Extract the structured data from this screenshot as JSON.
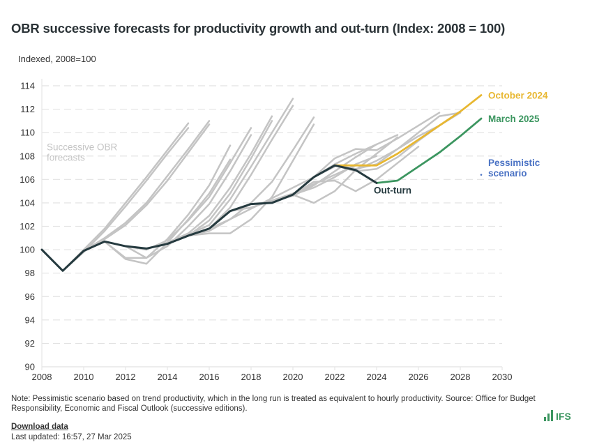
{
  "header": {
    "title": "OBR successive forecasts for productivity growth and out-turn (Index: 2008 = 100)",
    "subtitle": "Indexed, 2008=100"
  },
  "footer": {
    "note": "Note: Pessimistic scenario based on trend productivity, which in the long run is treated as equivalent to hourly productivity. Source: Office for Budget Responsibility, Economic and Fiscal Outlook (successive editions).",
    "download_label": "Download data",
    "last_updated": "Last updated: 16:57, 27 Mar 2025",
    "logo_text": "IFS",
    "logo_icon": "bar-chart-icon"
  },
  "colors": {
    "outturn": "#253a3f",
    "october_2024": "#e8b730",
    "march_2025": "#3c9660",
    "pessimistic": "#4a72c4",
    "forecasts": "#c4c4c4",
    "grid": "#e2e2e2"
  },
  "chart_data": {
    "type": "line",
    "title": "OBR successive forecasts for productivity growth and out-turn (Index: 2008 = 100)",
    "ylabel": "Indexed, 2008=100",
    "xlabel": "",
    "xlim": [
      2008,
      2030
    ],
    "ylim": [
      90,
      114
    ],
    "x_ticks": [
      "2008",
      "2010",
      "2012",
      "2014",
      "2016",
      "2018",
      "2020",
      "2022",
      "2024",
      "2026",
      "2028",
      "2030"
    ],
    "y_ticks": [
      "90",
      "92",
      "94",
      "96",
      "98",
      "100",
      "102",
      "104",
      "106",
      "108",
      "110",
      "112",
      "114"
    ],
    "grid": "horizontal-dashed",
    "annotations": [
      {
        "text": "Successive OBR forecasts",
        "lines": [
          "Successive OBR",
          "forecasts"
        ],
        "series": "forecasts"
      },
      {
        "text": "Out-turn",
        "series": "outturn"
      },
      {
        "text": "October 2024",
        "series": "october_2024"
      },
      {
        "text": "March 2025",
        "series": "march_2025"
      },
      {
        "text": "Pessimistic scenario",
        "lines": [
          "Pessimistic",
          "scenario"
        ],
        "series": "pessimistic"
      }
    ],
    "series": [
      {
        "name": "Out-turn",
        "key": "outturn",
        "x": [
          2008,
          2009,
          2010,
          2011,
          2012,
          2013,
          2014,
          2015,
          2016,
          2017,
          2018,
          2019,
          2020,
          2021,
          2022,
          2023,
          2024
        ],
        "values": [
          100,
          98.2,
          99.9,
          100.7,
          100.3,
          100.1,
          100.5,
          101.2,
          101.8,
          103.3,
          103.9,
          104.0,
          104.7,
          106.2,
          107.2,
          106.8,
          105.7
        ]
      },
      {
        "name": "October 2024",
        "key": "october_2024",
        "x": [
          2022,
          2023,
          2024,
          2025,
          2026,
          2027,
          2028,
          2029
        ],
        "values": [
          107.2,
          107.2,
          107.2,
          108.2,
          109.4,
          110.6,
          111.8,
          113.2
        ]
      },
      {
        "name": "March 2025",
        "key": "march_2025",
        "x": [
          2024,
          2025,
          2026,
          2027,
          2028,
          2029
        ],
        "values": [
          105.7,
          105.9,
          107.1,
          108.3,
          109.7,
          111.2
        ]
      },
      {
        "name": "Pessimistic scenario",
        "key": "pessimistic",
        "x": [
          2029
        ],
        "values": [
          106.4
        ]
      }
    ],
    "forecast_series": [
      {
        "x": [
          2009,
          2010,
          2011,
          2012,
          2013,
          2014,
          2015
        ],
        "values": [
          98.2,
          100.0,
          101.8,
          104.0,
          106.2,
          108.5,
          110.8
        ]
      },
      {
        "x": [
          2009,
          2010,
          2011,
          2012,
          2013,
          2014,
          2015
        ],
        "values": [
          98.2,
          99.8,
          101.6,
          103.7,
          105.9,
          108.2,
          110.4
        ]
      },
      {
        "x": [
          2010,
          2011,
          2012,
          2013,
          2014,
          2015,
          2016
        ],
        "values": [
          99.9,
          101.0,
          102.3,
          104.0,
          106.3,
          108.6,
          111.0
        ]
      },
      {
        "x": [
          2010,
          2011,
          2012,
          2013,
          2014,
          2015,
          2016
        ],
        "values": [
          99.9,
          100.9,
          102.1,
          103.8,
          105.9,
          108.3,
          110.7
        ]
      },
      {
        "x": [
          2011,
          2012,
          2013,
          2014,
          2015,
          2016,
          2017
        ],
        "values": [
          100.7,
          99.3,
          99.3,
          100.9,
          103.0,
          105.5,
          108.9
        ]
      },
      {
        "x": [
          2011,
          2012,
          2013,
          2014,
          2015,
          2016,
          2017
        ],
        "values": [
          100.7,
          99.2,
          98.8,
          100.6,
          102.6,
          104.8,
          107.7
        ]
      },
      {
        "x": [
          2012,
          2013,
          2014,
          2015,
          2016,
          2017,
          2018
        ],
        "values": [
          100.3,
          100.0,
          100.8,
          102.5,
          104.5,
          107.4,
          110.4
        ]
      },
      {
        "x": [
          2012,
          2013,
          2014,
          2015,
          2016,
          2017,
          2018
        ],
        "values": [
          100.3,
          99.3,
          100.3,
          102.0,
          103.9,
          106.7,
          109.8
        ]
      },
      {
        "x": [
          2013,
          2014,
          2015,
          2016,
          2017,
          2018,
          2019
        ],
        "values": [
          100.1,
          100.6,
          101.4,
          102.9,
          105.3,
          108.2,
          111.4
        ]
      },
      {
        "x": [
          2013,
          2014,
          2015,
          2016,
          2017,
          2018,
          2019
        ],
        "values": [
          100.1,
          100.5,
          101.2,
          102.5,
          104.8,
          107.8,
          111.0
        ]
      },
      {
        "x": [
          2014,
          2015,
          2016,
          2017,
          2018,
          2019,
          2020
        ],
        "values": [
          100.5,
          101.3,
          102.1,
          104.3,
          107.1,
          110.0,
          112.9
        ]
      },
      {
        "x": [
          2014,
          2015,
          2016,
          2017,
          2018,
          2019,
          2020
        ],
        "values": [
          100.5,
          101.2,
          101.8,
          103.6,
          106.4,
          109.4,
          112.3
        ]
      },
      {
        "x": [
          2015,
          2016,
          2017,
          2018,
          2019,
          2020,
          2021
        ],
        "values": [
          101.2,
          101.6,
          102.6,
          104.0,
          105.8,
          108.5,
          111.3
        ]
      },
      {
        "x": [
          2015,
          2016,
          2017,
          2018,
          2019,
          2020,
          2021
        ],
        "values": [
          101.2,
          101.4,
          101.4,
          102.6,
          104.5,
          107.6,
          110.7
        ]
      },
      {
        "x": [
          2016,
          2017,
          2018,
          2019,
          2020,
          2021,
          2022
        ],
        "values": [
          101.8,
          102.6,
          103.5,
          104.4,
          105.3,
          106.2,
          107.1
        ]
      },
      {
        "x": [
          2017,
          2018,
          2019,
          2020,
          2021,
          2022,
          2023
        ],
        "values": [
          103.3,
          103.6,
          104.2,
          104.8,
          105.6,
          106.4,
          107.2
        ]
      },
      {
        "x": [
          2018,
          2019,
          2020,
          2021,
          2022,
          2023,
          2024
        ],
        "values": [
          103.9,
          104.1,
          104.6,
          105.5,
          106.7,
          107.9,
          109.0
        ]
      },
      {
        "x": [
          2019,
          2020,
          2021,
          2022,
          2023,
          2024,
          2025
        ],
        "values": [
          104.0,
          104.7,
          104.0,
          105.0,
          106.8,
          108.2,
          109.6
        ]
      },
      {
        "x": [
          2020,
          2021,
          2022,
          2023,
          2024,
          2025,
          2026
        ],
        "values": [
          104.7,
          105.8,
          105.9,
          105.0,
          106.0,
          107.4,
          108.8
        ]
      },
      {
        "x": [
          2021,
          2022,
          2023,
          2024,
          2025,
          2026,
          2027
        ],
        "values": [
          106.2,
          107.8,
          108.6,
          108.5,
          109.5,
          110.6,
          111.7
        ]
      },
      {
        "x": [
          2022,
          2023,
          2024,
          2025,
          2026,
          2027,
          2028
        ],
        "values": [
          107.2,
          106.7,
          106.9,
          107.9,
          109.3,
          110.6,
          111.7
        ]
      },
      {
        "x": [
          2022,
          2023,
          2024,
          2025,
          2026,
          2027,
          2028
        ],
        "values": [
          107.2,
          106.9,
          107.3,
          108.6,
          110.0,
          111.4,
          111.7
        ]
      },
      {
        "x": [
          2023,
          2024,
          2025,
          2026,
          2027,
          2028
        ],
        "values": [
          106.8,
          107.6,
          108.6,
          109.7,
          110.6,
          111.8
        ]
      },
      {
        "x": [
          2021,
          2022,
          2023,
          2024,
          2025
        ],
        "values": [
          106.2,
          107.3,
          108.2,
          109.0,
          109.8
        ]
      },
      {
        "x": [
          2020,
          2021,
          2022,
          2023,
          2024
        ],
        "values": [
          104.7,
          105.3,
          106.2,
          107.3,
          108.0
        ]
      }
    ]
  }
}
